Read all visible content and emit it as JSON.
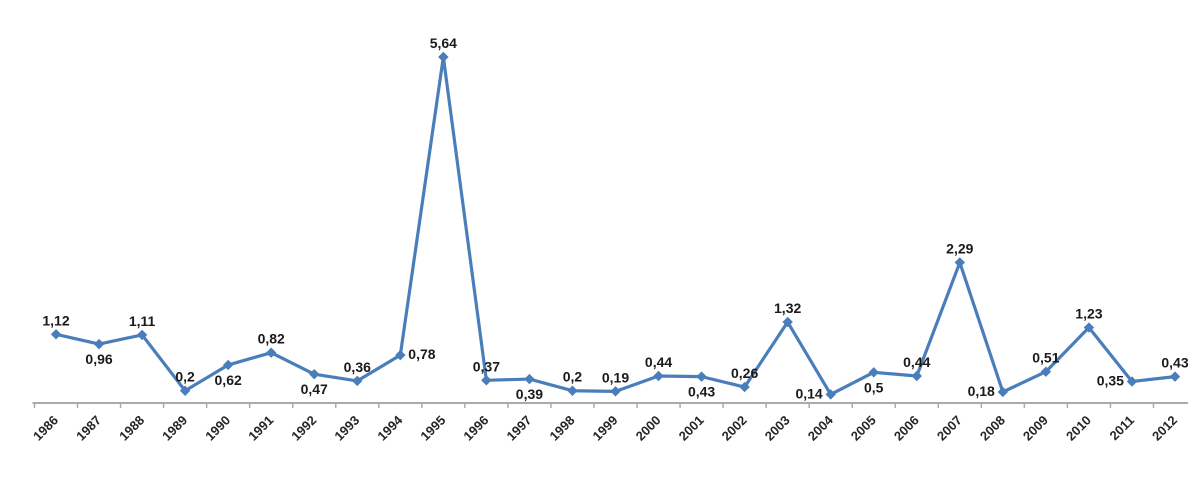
{
  "chart_data": {
    "type": "line",
    "title": "",
    "xlabel": "",
    "ylabel": "",
    "legend": "none",
    "grid": false,
    "ylim": [
      0,
      5.8
    ],
    "categories": [
      "1986",
      "1987",
      "1988",
      "1989",
      "1990",
      "1991",
      "1992",
      "1993",
      "1994",
      "1995",
      "1996",
      "1997",
      "1998",
      "1999",
      "2000",
      "2001",
      "2002",
      "2003",
      "2004",
      "2005",
      "2006",
      "2007",
      "2008",
      "2009",
      "2010",
      "2011",
      "2012"
    ],
    "series": [
      {
        "name": "value",
        "values": [
          1.12,
          0.96,
          1.11,
          0.2,
          0.62,
          0.82,
          0.47,
          0.36,
          0.78,
          5.64,
          0.37,
          0.39,
          0.2,
          0.19,
          0.44,
          0.43,
          0.26,
          1.32,
          0.14,
          0.5,
          0.44,
          2.29,
          0.18,
          0.51,
          1.23,
          0.35,
          0.43
        ],
        "labels": [
          "1,12",
          "0,96",
          "1,11",
          "0,2",
          "0,62",
          "0,82",
          "0,47",
          "0,36",
          "0,78",
          "5,64",
          "0,37",
          "0,39",
          "0,2",
          "0,19",
          "0,44",
          "0,43",
          "0,26",
          "1,32",
          "0,14",
          "0,5",
          "0,44",
          "2,29",
          "0,18",
          "0,51",
          "1,23",
          "0,35",
          "0,43"
        ],
        "label_positions": [
          "above",
          "below",
          "above",
          "above",
          "below",
          "above",
          "below",
          "above",
          "right",
          "above",
          "above",
          "below",
          "above",
          "above",
          "above",
          "below",
          "above",
          "above",
          "left",
          "below",
          "above",
          "above",
          "left",
          "above",
          "above",
          "left",
          "above"
        ]
      }
    ],
    "colors": {
      "line": "#4a7ebb",
      "marker": "#4a7ebb",
      "axis": "#ababab",
      "label_text": "#1a1a1a",
      "axis_text": "#262626"
    },
    "marker_shape": "diamond"
  }
}
